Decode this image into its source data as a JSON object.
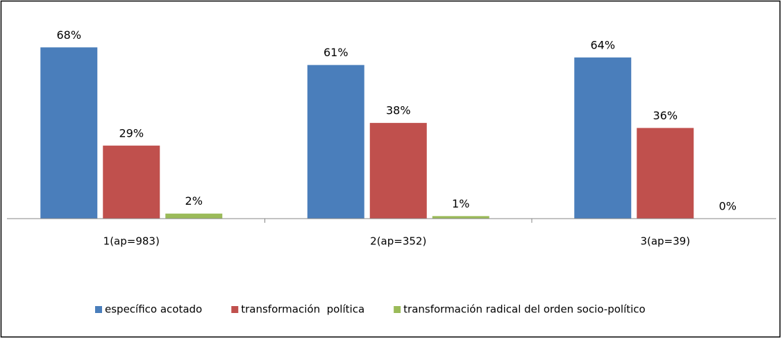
{
  "chart_data": {
    "type": "bar",
    "categories": [
      "1(ap=983)",
      "2(ap=352)",
      "3(ap=39)"
    ],
    "series": [
      {
        "name": "específico acotado",
        "color": "#4a7ebb",
        "values": [
          68,
          61,
          64
        ],
        "value_labels": [
          "68%",
          "61%",
          "64%"
        ]
      },
      {
        "name": "transformación  política",
        "color": "#c0504d",
        "values": [
          29,
          38,
          36
        ],
        "value_labels": [
          "29%",
          "38%",
          "36%"
        ]
      },
      {
        "name": "transformación radical del orden socio-político",
        "color": "#9bbb59",
        "values": [
          2,
          1,
          0
        ],
        "value_labels": [
          "2%",
          "1%",
          "0%"
        ]
      }
    ],
    "ylim": [
      0,
      70
    ],
    "legend": "bottom"
  }
}
